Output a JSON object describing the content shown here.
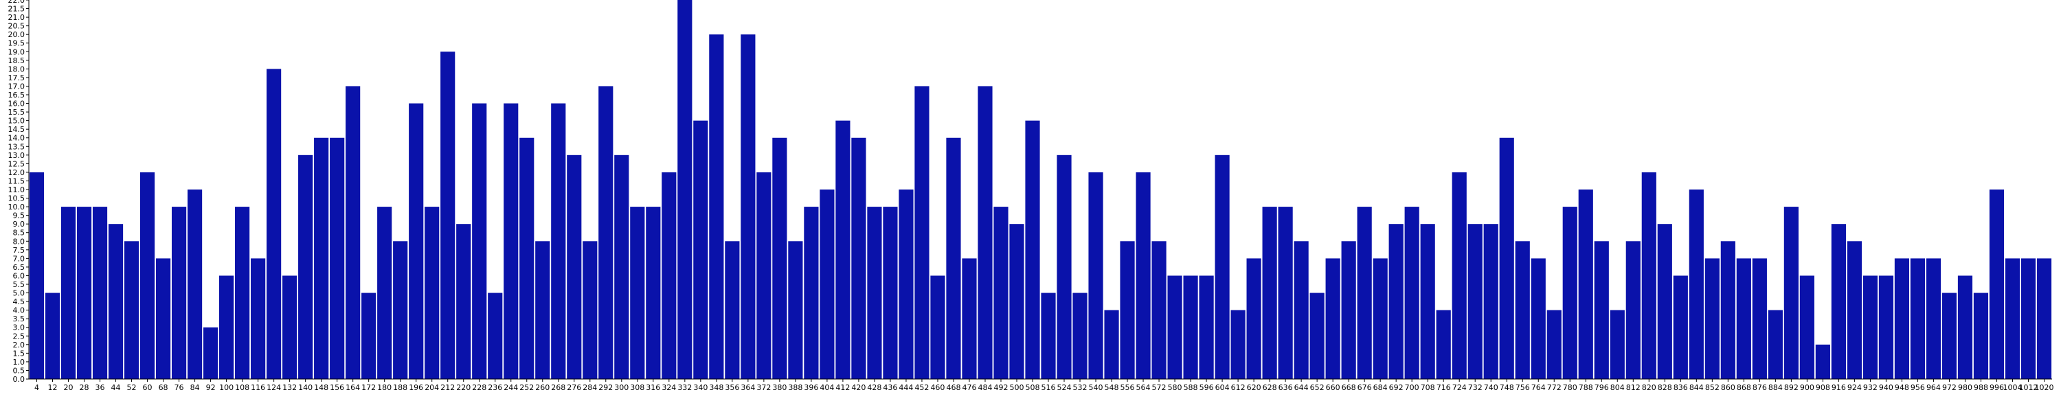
{
  "chart_data": {
    "type": "bar",
    "title": "",
    "xlabel": "",
    "ylabel": "",
    "ylim": [
      0,
      22
    ],
    "ytick_step": 0.5,
    "bar_color": "#0a12aa",
    "grid": false,
    "categories": [
      "4",
      "12",
      "20",
      "28",
      "36",
      "44",
      "52",
      "60",
      "68",
      "76",
      "84",
      "92",
      "100",
      "108",
      "116",
      "124",
      "132",
      "140",
      "148",
      "156",
      "164",
      "172",
      "180",
      "188",
      "196",
      "204",
      "212",
      "220",
      "228",
      "236",
      "244",
      "252",
      "260",
      "268",
      "276",
      "284",
      "292",
      "300",
      "308",
      "316",
      "324",
      "332",
      "340",
      "348",
      "356",
      "364",
      "372",
      "380",
      "388",
      "396",
      "404",
      "412",
      "420",
      "428",
      "436",
      "444",
      "452",
      "460",
      "468",
      "476",
      "484",
      "492",
      "500",
      "508",
      "516",
      "524",
      "532",
      "540",
      "548",
      "556",
      "564",
      "572",
      "580",
      "588",
      "596",
      "604",
      "612",
      "620",
      "628",
      "636",
      "644",
      "652",
      "660",
      "668",
      "676",
      "684",
      "692",
      "700",
      "708",
      "716",
      "724",
      "732",
      "740",
      "748",
      "756",
      "764",
      "772",
      "780",
      "788",
      "796",
      "804",
      "812",
      "820",
      "828",
      "836",
      "844",
      "852",
      "860",
      "868",
      "876",
      "884",
      "892",
      "900",
      "908",
      "916",
      "924",
      "932",
      "940",
      "948",
      "956",
      "964",
      "972",
      "980",
      "988",
      "996",
      "1004",
      "1012",
      "1020"
    ],
    "values": [
      12,
      5,
      10,
      10,
      10,
      9,
      8,
      12,
      7,
      10,
      11,
      3,
      6,
      10,
      7,
      18,
      6,
      13,
      14,
      14,
      17,
      5,
      10,
      8,
      16,
      10,
      19,
      9,
      16,
      5,
      16,
      14,
      8,
      16,
      13,
      8,
      17,
      13,
      10,
      10,
      12,
      22,
      15,
      20,
      8,
      20,
      12,
      14,
      8,
      10,
      11,
      15,
      14,
      10,
      10,
      11,
      17,
      6,
      14,
      7,
      17,
      10,
      9,
      15,
      5,
      13,
      5,
      12,
      4,
      8,
      12,
      8,
      6,
      6,
      6,
      13,
      4,
      7,
      10,
      10,
      8,
      5,
      7,
      8,
      10,
      7,
      9,
      10,
      9,
      4,
      12,
      9,
      9,
      14,
      8,
      7,
      4,
      10,
      11,
      8,
      4,
      8,
      12,
      9,
      6,
      11,
      7,
      8,
      7,
      7,
      4,
      10,
      6,
      2,
      9,
      8,
      6,
      6,
      7,
      7,
      7,
      5,
      6,
      5,
      11,
      7,
      7,
      7
    ]
  }
}
